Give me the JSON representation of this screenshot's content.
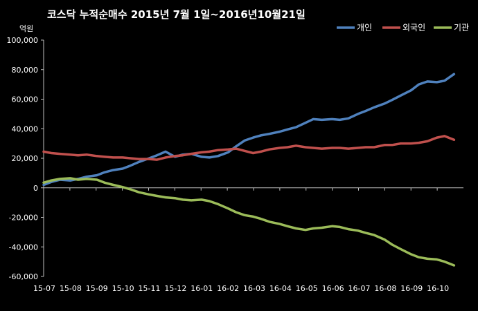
{
  "chart_data": {
    "type": "line",
    "title": "코스닥 누적순매수 2015년 7월 1일~2016년10월21일",
    "ylabel": "억원",
    "ylim": [
      -60000,
      100000
    ],
    "yticks": [
      100000,
      80000,
      60000,
      40000,
      20000,
      0,
      -20000,
      -40000,
      -60000
    ],
    "ytick_labels": [
      "100,000",
      "80,000",
      "60,000",
      "40,000",
      "20,000",
      "0",
      "-20,000",
      "-40,000",
      "-60,000"
    ],
    "xtick_labels": [
      "15-07",
      "15-08",
      "15-09",
      "15-10",
      "15-11",
      "15-12",
      "16-01",
      "16-02",
      "16-03",
      "16-04",
      "16-05",
      "16-06",
      "16-07",
      "16-08",
      "16-09",
      "16-10"
    ],
    "x_start": "2015-07",
    "grid": false,
    "legend_position": "top-right",
    "series": [
      {
        "name": "개인",
        "color": "#4f81bd",
        "points": [
          [
            "2015-07",
            2000
          ],
          [
            "2015-07-10",
            4000
          ],
          [
            "2015-07-20",
            5500
          ],
          [
            "2015-08",
            5000
          ],
          [
            "2015-08-10",
            6000
          ],
          [
            "2015-08-20",
            7500
          ],
          [
            "2015-09",
            8500
          ],
          [
            "2015-09-10",
            10500
          ],
          [
            "2015-09-20",
            12000
          ],
          [
            "2015-10",
            13000
          ],
          [
            "2015-10-10",
            15000
          ],
          [
            "2015-10-20",
            17500
          ],
          [
            "2015-11",
            20000
          ],
          [
            "2015-11-10",
            22000
          ],
          [
            "2015-11-20",
            24500
          ],
          [
            "2015-12",
            21000
          ],
          [
            "2015-12-10",
            22500
          ],
          [
            "2015-12-20",
            23000
          ],
          [
            "2016-01",
            21000
          ],
          [
            "2016-01-10",
            20500
          ],
          [
            "2016-01-20",
            21500
          ],
          [
            "2016-02",
            24000
          ],
          [
            "2016-02-10",
            28000
          ],
          [
            "2016-02-20",
            32000
          ],
          [
            "2016-03",
            34000
          ],
          [
            "2016-03-10",
            35500
          ],
          [
            "2016-03-20",
            36500
          ],
          [
            "2016-04",
            38000
          ],
          [
            "2016-04-10",
            39500
          ],
          [
            "2016-04-20",
            41000
          ],
          [
            "2016-05",
            44000
          ],
          [
            "2016-05-10",
            46500
          ],
          [
            "2016-05-20",
            46000
          ],
          [
            "2016-06",
            46500
          ],
          [
            "2016-06-10",
            46000
          ],
          [
            "2016-06-20",
            47000
          ],
          [
            "2016-07",
            50000
          ],
          [
            "2016-07-10",
            52000
          ],
          [
            "2016-07-20",
            54500
          ],
          [
            "2016-08",
            57000
          ],
          [
            "2016-08-10",
            59500
          ],
          [
            "2016-08-20",
            62500
          ],
          [
            "2016-09",
            66000
          ],
          [
            "2016-09-10",
            70000
          ],
          [
            "2016-09-20",
            72000
          ],
          [
            "2016-10",
            71500
          ],
          [
            "2016-10-10",
            72500
          ],
          [
            "2016-10-21",
            77000
          ]
        ]
      },
      {
        "name": "외국인",
        "color": "#c0504d",
        "points": [
          [
            "2015-07",
            24500
          ],
          [
            "2015-07-10",
            23500
          ],
          [
            "2015-07-20",
            23000
          ],
          [
            "2015-08",
            22500
          ],
          [
            "2015-08-10",
            22000
          ],
          [
            "2015-08-20",
            22500
          ],
          [
            "2015-09",
            21500
          ],
          [
            "2015-09-10",
            21000
          ],
          [
            "2015-09-20",
            20500
          ],
          [
            "2015-10",
            20500
          ],
          [
            "2015-10-10",
            20000
          ],
          [
            "2015-10-20",
            19500
          ],
          [
            "2015-11",
            19500
          ],
          [
            "2015-11-10",
            19000
          ],
          [
            "2015-11-20",
            20500
          ],
          [
            "2015-12",
            21500
          ],
          [
            "2015-12-10",
            22000
          ],
          [
            "2015-12-20",
            23000
          ],
          [
            "2016-01",
            24000
          ],
          [
            "2016-01-10",
            24500
          ],
          [
            "2016-01-20",
            25500
          ],
          [
            "2016-02",
            26000
          ],
          [
            "2016-02-10",
            26500
          ],
          [
            "2016-02-20",
            25000
          ],
          [
            "2016-03",
            23500
          ],
          [
            "2016-03-10",
            24500
          ],
          [
            "2016-03-20",
            26000
          ],
          [
            "2016-04",
            27000
          ],
          [
            "2016-04-10",
            27500
          ],
          [
            "2016-04-20",
            28500
          ],
          [
            "2016-05",
            27500
          ],
          [
            "2016-05-10",
            27000
          ],
          [
            "2016-05-20",
            26500
          ],
          [
            "2016-06",
            27000
          ],
          [
            "2016-06-10",
            27000
          ],
          [
            "2016-06-20",
            26500
          ],
          [
            "2016-07",
            27000
          ],
          [
            "2016-07-10",
            27500
          ],
          [
            "2016-07-20",
            27500
          ],
          [
            "2016-08",
            29000
          ],
          [
            "2016-08-10",
            29000
          ],
          [
            "2016-08-20",
            30000
          ],
          [
            "2016-09",
            30000
          ],
          [
            "2016-09-10",
            30500
          ],
          [
            "2016-09-20",
            31500
          ],
          [
            "2016-10",
            34000
          ],
          [
            "2016-10-10",
            35000
          ],
          [
            "2016-10-21",
            32500
          ]
        ]
      },
      {
        "name": "기관",
        "color": "#9bbb59",
        "points": [
          [
            "2015-07",
            3500
          ],
          [
            "2015-07-10",
            5000
          ],
          [
            "2015-07-20",
            6000
          ],
          [
            "2015-08",
            6500
          ],
          [
            "2015-08-10",
            5500
          ],
          [
            "2015-08-20",
            6000
          ],
          [
            "2015-09",
            5500
          ],
          [
            "2015-09-10",
            3500
          ],
          [
            "2015-09-20",
            2000
          ],
          [
            "2015-10",
            500
          ],
          [
            "2015-10-10",
            -1000
          ],
          [
            "2015-10-20",
            -3000
          ],
          [
            "2015-11",
            -4500
          ],
          [
            "2015-11-10",
            -5500
          ],
          [
            "2015-11-20",
            -6500
          ],
          [
            "2015-12",
            -7000
          ],
          [
            "2015-12-10",
            -8000
          ],
          [
            "2015-12-20",
            -8500
          ],
          [
            "2016-01",
            -8000
          ],
          [
            "2016-01-10",
            -9000
          ],
          [
            "2016-01-20",
            -11000
          ],
          [
            "2016-02",
            -14000
          ],
          [
            "2016-02-10",
            -16500
          ],
          [
            "2016-02-20",
            -18500
          ],
          [
            "2016-03",
            -19500
          ],
          [
            "2016-03-10",
            -21000
          ],
          [
            "2016-03-20",
            -23000
          ],
          [
            "2016-04",
            -24500
          ],
          [
            "2016-04-10",
            -26000
          ],
          [
            "2016-04-20",
            -27500
          ],
          [
            "2016-05",
            -28500
          ],
          [
            "2016-05-10",
            -27500
          ],
          [
            "2016-05-20",
            -27000
          ],
          [
            "2016-06",
            -26000
          ],
          [
            "2016-06-10",
            -26500
          ],
          [
            "2016-06-20",
            -28000
          ],
          [
            "2016-07",
            -29000
          ],
          [
            "2016-07-10",
            -30500
          ],
          [
            "2016-07-20",
            -32000
          ],
          [
            "2016-08",
            -35000
          ],
          [
            "2016-08-10",
            -38500
          ],
          [
            "2016-08-20",
            -41500
          ],
          [
            "2016-09",
            -45000
          ],
          [
            "2016-09-10",
            -47000
          ],
          [
            "2016-09-20",
            -48000
          ],
          [
            "2016-10",
            -48500
          ],
          [
            "2016-10-10",
            -50000
          ],
          [
            "2016-10-21",
            -52500
          ]
        ]
      }
    ]
  }
}
